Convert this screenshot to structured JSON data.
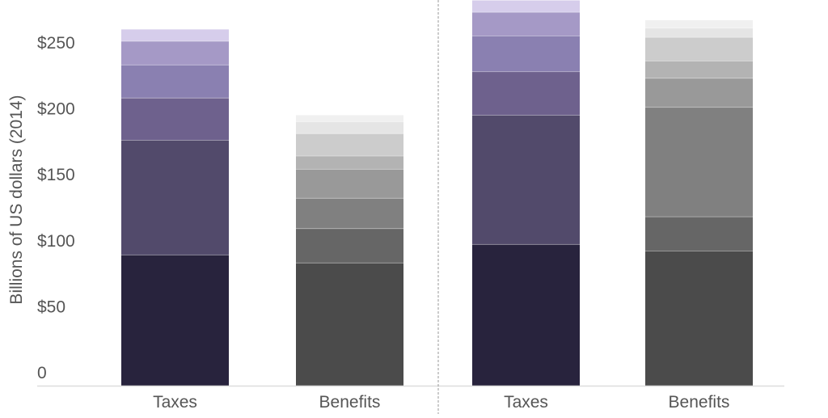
{
  "chart_data": {
    "type": "bar",
    "stacked": true,
    "title": "",
    "xlabel": "",
    "ylabel": "Billions of US dollars (2014)",
    "ylim": [
      0,
      292
    ],
    "yticks": [
      0,
      50,
      100,
      150,
      200,
      250
    ],
    "ytick_labels": [
      "0",
      "$50",
      "$100",
      "$150",
      "$200",
      "$250"
    ],
    "grid": false,
    "panels": [
      {
        "bars": [
          {
            "category": "Taxes",
            "segments": [
              99,
              87,
              32,
              25,
              18,
              9
            ],
            "colors": [
              "#28233d",
              "#524a6b",
              "#6e618d",
              "#8a80b1",
              "#a599c6",
              "#d6cdeb"
            ]
          },
          {
            "category": "Benefits",
            "segments": [
              93,
              26,
              23,
              22,
              10,
              17,
              9,
              5
            ],
            "colors": [
              "#4b4b4b",
              "#666666",
              "#808080",
              "#999999",
              "#b3b3b3",
              "#cccccc",
              "#e5e5e5",
              "#f0f0f0"
            ]
          }
        ]
      },
      {
        "bars": [
          {
            "category": "Taxes",
            "segments": [
              107,
              98,
              33,
              27,
              18,
              9
            ],
            "colors": [
              "#28233d",
              "#524a6b",
              "#6e618d",
              "#8a80b1",
              "#a599c6",
              "#d6cdeb"
            ]
          },
          {
            "category": "Benefits",
            "segments": [
              102,
              26,
              83,
              22,
              13,
              18,
              7,
              6
            ],
            "colors": [
              "#4b4b4b",
              "#666666",
              "#808080",
              "#999999",
              "#b3b3b3",
              "#cccccc",
              "#e5e5e5",
              "#f0f0f0"
            ]
          }
        ]
      }
    ]
  }
}
